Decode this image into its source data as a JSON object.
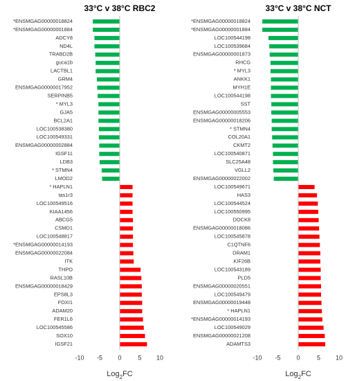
{
  "chart_data": [
    {
      "type": "bar",
      "orientation": "horizontal",
      "title": "33°C v 38°C RBC2",
      "categories": [
        "*ENSMGAG00000018824",
        "*ENSMGAG00000001884",
        "ADCY8",
        "ND4L",
        "TRABD2B",
        "guca1b",
        "LACTBL1",
        "GRM4",
        "ENSMGAG00000017952",
        "SERPINB5",
        "* MYL3",
        "GJA5",
        "BCL2A1",
        "LOC100538380",
        "LOC100549331",
        "ENSMGAG00000002884",
        "IGSF11",
        "LDB3",
        "* STMN4",
        "LMOD2",
        "* HAPLN1",
        "tas1r3",
        "LOC100549516",
        "KIAA1456",
        "ABCG5",
        "CSMD1",
        "LOC100548817",
        "*ENSMGAG00000014193",
        "ENSMGAG00000022084",
        "ITK",
        "THPO",
        "RASL10B",
        "ENSMGAG00000018429",
        "EPS8L3",
        "FOXI1",
        "ADAM20",
        "FER1L6",
        "LOC100545586",
        "SOX10",
        "IGSF21"
      ],
      "values": [
        -6.7,
        -6.7,
        -6.3,
        -6.3,
        -6.1,
        -6.0,
        -6.0,
        -5.7,
        -5.6,
        -5.5,
        -5.3,
        -5.3,
        -5.3,
        -5.2,
        -5.2,
        -5.1,
        -5.1,
        -5.0,
        -4.5,
        -4.4,
        3.2,
        3.2,
        3.2,
        3.2,
        3.3,
        3.3,
        3.3,
        3.3,
        3.4,
        3.5,
        5.2,
        5.4,
        5.5,
        5.5,
        5.6,
        5.6,
        5.8,
        6.0,
        6.3,
        6.8
      ],
      "colors": {
        "negative": "#00b050",
        "positive": "#ff0000"
      },
      "xlim": [
        -10,
        10
      ],
      "xticks": [
        -10,
        -5,
        0,
        5,
        10
      ],
      "x_label": [
        "Log",
        "2",
        "FC"
      ]
    },
    {
      "type": "bar",
      "orientation": "horizontal",
      "title": "33°C v 38°C NCT",
      "categories": [
        "*ENSMGAG00000018824",
        "*ENSMGAG00000001884",
        "LOC100544198",
        "LOC100539684",
        "ENSMGAG00000001873",
        "RHCG",
        "* MYL3",
        "ANKK1",
        "MYH1E",
        "LOC100544198",
        "SST",
        "ENSMGAG00000005553",
        "ENSMGAG00000018206",
        "* STMN4",
        "COL20A1",
        "CKMT2",
        "LOC100540871",
        "SLC25A48",
        "VGLL2",
        "ENSMGAG00000022002",
        "LOC100549671",
        "HAS3",
        "LOC100544524",
        "LOC100550995",
        "DOCK8",
        "ENSMGAG00000018086",
        "LOC100545878",
        "C1QTNF6",
        "DRAM1",
        "KIF26B",
        "LOC100543189",
        "PLD5",
        "ENSMGAG00000020551",
        "LOC100549479",
        "ENSMGAG00000019448",
        "* HAPLN1",
        "*ENSMGAG00000014193",
        "LOC100549029",
        "ENSMGAG00000021208",
        "ADAMTS3"
      ],
      "values": [
        -8.8,
        -8.8,
        -7.3,
        -7.1,
        -7.0,
        -6.8,
        -6.8,
        -6.7,
        -6.7,
        -6.7,
        -6.6,
        -6.6,
        -6.5,
        -6.5,
        -6.4,
        -6.3,
        -6.2,
        -6.2,
        -6.1,
        -6.0,
        4.0,
        4.6,
        4.8,
        4.9,
        5.0,
        5.1,
        5.2,
        5.3,
        5.4,
        5.4,
        5.5,
        5.5,
        5.6,
        5.6,
        5.7,
        5.8,
        5.9,
        6.2,
        6.5,
        6.6
      ],
      "colors": {
        "negative": "#00b050",
        "positive": "#ff0000"
      },
      "xlim": [
        -10,
        10
      ],
      "xticks": [
        -10,
        -5,
        0,
        5,
        10
      ],
      "x_label": [
        "Log",
        "2",
        "FC"
      ]
    }
  ]
}
